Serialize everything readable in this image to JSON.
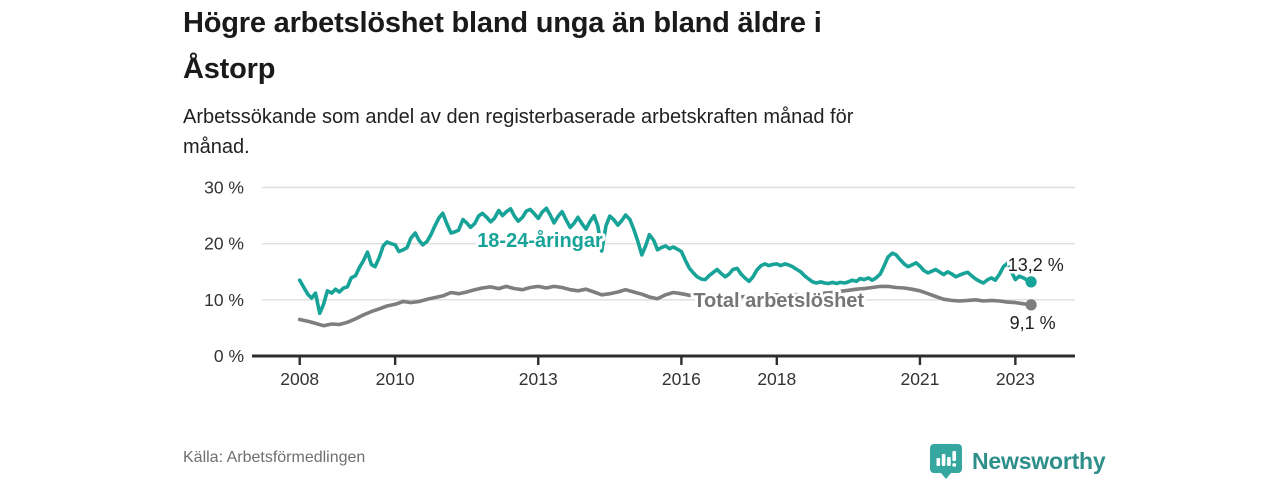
{
  "header": {
    "title": "Högre arbetslöshet bland unga än bland äldre i\nÅstorp",
    "subtitle": "Arbetssökande som andel av den registerbaserade arbetskraften månad för\nmånad."
  },
  "footer": {
    "source": "Källa: Arbetsförmedlingen",
    "brand": "Newsworthy",
    "brand_color": "#2e8f8a",
    "badge_color": "#35a79f"
  },
  "chart_data": {
    "type": "line",
    "title": "Högre arbetslöshet bland unga än bland äldre i Åstorp",
    "subtitle": "Arbetssökande som andel av den registerbaserade arbetskraften månad för månad.",
    "xlabel": "",
    "ylabel": "",
    "xlim": [
      2007.0,
      2024.25
    ],
    "ylim": [
      0,
      30
    ],
    "grid": "horizontal",
    "grid_color": "#dedede",
    "x_ticks": [
      {
        "value": 2008,
        "label": "2008"
      },
      {
        "value": 2010,
        "label": "2010"
      },
      {
        "value": 2013,
        "label": "2013"
      },
      {
        "value": 2016,
        "label": "2016"
      },
      {
        "value": 2018,
        "label": "2018"
      },
      {
        "value": 2021,
        "label": "2021"
      },
      {
        "value": 2023,
        "label": "2023"
      }
    ],
    "y_ticks": [
      {
        "value": 0,
        "label": "0 %"
      },
      {
        "value": 10,
        "label": "10 %"
      },
      {
        "value": 20,
        "label": "20 %"
      },
      {
        "value": 30,
        "label": "30 %"
      }
    ],
    "series": [
      {
        "name": "Total arbetslöshet",
        "color": "#7e7e7e",
        "label_color": "#757575",
        "label_pos": {
          "x": 2016.25,
          "y": 8.7
        },
        "end_label": "9,1 %",
        "end_label_pos": {
          "x": 2022.88,
          "y": 4.8
        },
        "end_value": 9.1,
        "points": [
          [
            2008.0,
            6.5
          ],
          [
            2008.17,
            6.2
          ],
          [
            2008.33,
            5.8
          ],
          [
            2008.5,
            5.4
          ],
          [
            2008.67,
            5.7
          ],
          [
            2008.83,
            5.6
          ],
          [
            2009.0,
            6.0
          ],
          [
            2009.17,
            6.6
          ],
          [
            2009.33,
            7.3
          ],
          [
            2009.5,
            7.9
          ],
          [
            2009.67,
            8.4
          ],
          [
            2009.83,
            8.9
          ],
          [
            2010.0,
            9.2
          ],
          [
            2010.17,
            9.7
          ],
          [
            2010.33,
            9.5
          ],
          [
            2010.5,
            9.7
          ],
          [
            2010.67,
            10.1
          ],
          [
            2010.83,
            10.4
          ],
          [
            2011.0,
            10.7
          ],
          [
            2011.17,
            11.3
          ],
          [
            2011.33,
            11.1
          ],
          [
            2011.5,
            11.4
          ],
          [
            2011.67,
            11.8
          ],
          [
            2011.83,
            12.1
          ],
          [
            2012.0,
            12.3
          ],
          [
            2012.17,
            12.0
          ],
          [
            2012.33,
            12.4
          ],
          [
            2012.5,
            12.0
          ],
          [
            2012.67,
            11.8
          ],
          [
            2012.83,
            12.2
          ],
          [
            2013.0,
            12.4
          ],
          [
            2013.17,
            12.1
          ],
          [
            2013.33,
            12.4
          ],
          [
            2013.5,
            12.2
          ],
          [
            2013.67,
            11.8
          ],
          [
            2013.83,
            11.6
          ],
          [
            2014.0,
            11.9
          ],
          [
            2014.17,
            11.4
          ],
          [
            2014.33,
            10.9
          ],
          [
            2014.5,
            11.1
          ],
          [
            2014.67,
            11.4
          ],
          [
            2014.83,
            11.8
          ],
          [
            2015.0,
            11.4
          ],
          [
            2015.17,
            11.0
          ],
          [
            2015.33,
            10.5
          ],
          [
            2015.5,
            10.2
          ],
          [
            2015.67,
            10.9
          ],
          [
            2015.83,
            11.3
          ],
          [
            2016.0,
            11.1
          ],
          [
            2016.17,
            10.8
          ],
          [
            2016.33,
            10.9
          ],
          [
            2016.5,
            10.6
          ],
          [
            2016.67,
            10.8
          ],
          [
            2016.83,
            10.6
          ],
          [
            2017.0,
            10.7
          ],
          [
            2017.17,
            10.5
          ],
          [
            2017.33,
            10.6
          ],
          [
            2017.5,
            10.8
          ],
          [
            2017.67,
            10.6
          ],
          [
            2017.83,
            10.8
          ],
          [
            2018.0,
            10.9
          ],
          [
            2018.17,
            10.8
          ],
          [
            2018.33,
            11.0
          ],
          [
            2018.5,
            10.8
          ],
          [
            2018.67,
            10.9
          ],
          [
            2018.83,
            11.0
          ],
          [
            2019.0,
            11.2
          ],
          [
            2019.17,
            11.3
          ],
          [
            2019.33,
            11.5
          ],
          [
            2019.5,
            11.7
          ],
          [
            2019.67,
            11.9
          ],
          [
            2019.83,
            12.0
          ],
          [
            2020.0,
            12.2
          ],
          [
            2020.17,
            12.4
          ],
          [
            2020.33,
            12.4
          ],
          [
            2020.5,
            12.2
          ],
          [
            2020.67,
            12.1
          ],
          [
            2020.83,
            11.9
          ],
          [
            2021.0,
            11.6
          ],
          [
            2021.17,
            11.1
          ],
          [
            2021.33,
            10.6
          ],
          [
            2021.5,
            10.1
          ],
          [
            2021.67,
            9.9
          ],
          [
            2021.83,
            9.8
          ],
          [
            2022.0,
            9.9
          ],
          [
            2022.17,
            10.0
          ],
          [
            2022.33,
            9.8
          ],
          [
            2022.5,
            9.9
          ],
          [
            2022.67,
            9.8
          ],
          [
            2022.83,
            9.6
          ],
          [
            2023.0,
            9.5
          ],
          [
            2023.17,
            9.3
          ],
          [
            2023.33,
            9.1
          ]
        ]
      },
      {
        "name": "18-24-åringar",
        "color": "#17a398",
        "label_color": "#17a398",
        "label_pos": {
          "x": 2011.72,
          "y": 19.4
        },
        "end_label": "13,2 %",
        "end_label_pos": {
          "x": 2022.84,
          "y": 15.1
        },
        "end_value": 13.2,
        "points": [
          [
            2008.0,
            13.5
          ],
          [
            2008.08,
            12.3
          ],
          [
            2008.17,
            11.0
          ],
          [
            2008.25,
            10.3
          ],
          [
            2008.33,
            11.2
          ],
          [
            2008.42,
            7.6
          ],
          [
            2008.5,
            9.2
          ],
          [
            2008.58,
            11.6
          ],
          [
            2008.67,
            11.2
          ],
          [
            2008.75,
            11.9
          ],
          [
            2008.83,
            11.4
          ],
          [
            2008.92,
            12.1
          ],
          [
            2009.0,
            12.3
          ],
          [
            2009.08,
            13.9
          ],
          [
            2009.17,
            14.3
          ],
          [
            2009.25,
            15.7
          ],
          [
            2009.33,
            16.9
          ],
          [
            2009.42,
            18.5
          ],
          [
            2009.5,
            16.3
          ],
          [
            2009.58,
            15.9
          ],
          [
            2009.67,
            17.6
          ],
          [
            2009.75,
            19.6
          ],
          [
            2009.83,
            20.3
          ],
          [
            2009.92,
            20.0
          ],
          [
            2010.0,
            19.8
          ],
          [
            2010.08,
            18.6
          ],
          [
            2010.17,
            18.9
          ],
          [
            2010.25,
            19.3
          ],
          [
            2010.33,
            21.0
          ],
          [
            2010.42,
            21.9
          ],
          [
            2010.5,
            20.6
          ],
          [
            2010.58,
            19.8
          ],
          [
            2010.67,
            20.4
          ],
          [
            2010.75,
            21.6
          ],
          [
            2010.83,
            23.1
          ],
          [
            2010.92,
            24.6
          ],
          [
            2011.0,
            25.4
          ],
          [
            2011.08,
            23.6
          ],
          [
            2011.17,
            21.9
          ],
          [
            2011.25,
            22.1
          ],
          [
            2011.33,
            22.4
          ],
          [
            2011.42,
            24.3
          ],
          [
            2011.5,
            23.7
          ],
          [
            2011.58,
            22.9
          ],
          [
            2011.67,
            23.6
          ],
          [
            2011.75,
            24.9
          ],
          [
            2011.83,
            25.4
          ],
          [
            2011.92,
            24.7
          ],
          [
            2012.0,
            23.9
          ],
          [
            2012.08,
            24.5
          ],
          [
            2012.17,
            25.9
          ],
          [
            2012.25,
            25.0
          ],
          [
            2012.33,
            25.7
          ],
          [
            2012.42,
            26.2
          ],
          [
            2012.5,
            24.9
          ],
          [
            2012.58,
            24.0
          ],
          [
            2012.67,
            24.7
          ],
          [
            2012.75,
            25.8
          ],
          [
            2012.83,
            26.1
          ],
          [
            2012.92,
            25.3
          ],
          [
            2013.0,
            24.5
          ],
          [
            2013.08,
            25.6
          ],
          [
            2013.17,
            26.3
          ],
          [
            2013.25,
            25.1
          ],
          [
            2013.33,
            23.7
          ],
          [
            2013.42,
            24.9
          ],
          [
            2013.5,
            25.7
          ],
          [
            2013.58,
            24.3
          ],
          [
            2013.67,
            22.9
          ],
          [
            2013.75,
            23.6
          ],
          [
            2013.83,
            24.7
          ],
          [
            2013.92,
            23.5
          ],
          [
            2014.0,
            22.6
          ],
          [
            2014.08,
            23.9
          ],
          [
            2014.17,
            25.0
          ],
          [
            2014.25,
            23.1
          ],
          [
            2014.33,
            18.7
          ],
          [
            2014.42,
            23.2
          ],
          [
            2014.5,
            24.9
          ],
          [
            2014.58,
            24.3
          ],
          [
            2014.67,
            23.3
          ],
          [
            2014.75,
            24.1
          ],
          [
            2014.83,
            25.1
          ],
          [
            2014.92,
            24.3
          ],
          [
            2015.0,
            22.6
          ],
          [
            2015.08,
            20.6
          ],
          [
            2015.17,
            18.0
          ],
          [
            2015.25,
            19.6
          ],
          [
            2015.33,
            21.6
          ],
          [
            2015.42,
            20.6
          ],
          [
            2015.5,
            18.9
          ],
          [
            2015.58,
            19.3
          ],
          [
            2015.67,
            19.6
          ],
          [
            2015.75,
            19.1
          ],
          [
            2015.83,
            19.4
          ],
          [
            2015.92,
            19.0
          ],
          [
            2016.0,
            18.6
          ],
          [
            2016.08,
            17.1
          ],
          [
            2016.17,
            15.6
          ],
          [
            2016.25,
            14.8
          ],
          [
            2016.33,
            14.1
          ],
          [
            2016.42,
            13.7
          ],
          [
            2016.5,
            13.6
          ],
          [
            2016.58,
            14.3
          ],
          [
            2016.67,
            14.9
          ],
          [
            2016.75,
            15.4
          ],
          [
            2016.83,
            14.7
          ],
          [
            2016.92,
            14.1
          ],
          [
            2017.0,
            14.6
          ],
          [
            2017.08,
            15.4
          ],
          [
            2017.17,
            15.6
          ],
          [
            2017.25,
            14.6
          ],
          [
            2017.33,
            13.9
          ],
          [
            2017.42,
            13.3
          ],
          [
            2017.5,
            14.1
          ],
          [
            2017.58,
            15.3
          ],
          [
            2017.67,
            16.1
          ],
          [
            2017.75,
            16.4
          ],
          [
            2017.83,
            16.1
          ],
          [
            2017.92,
            16.3
          ],
          [
            2018.0,
            16.4
          ],
          [
            2018.08,
            16.1
          ],
          [
            2018.17,
            16.4
          ],
          [
            2018.25,
            16.2
          ],
          [
            2018.33,
            15.9
          ],
          [
            2018.42,
            15.4
          ],
          [
            2018.5,
            15.0
          ],
          [
            2018.58,
            14.3
          ],
          [
            2018.67,
            13.7
          ],
          [
            2018.75,
            13.2
          ],
          [
            2018.83,
            13.0
          ],
          [
            2018.92,
            13.2
          ],
          [
            2019.0,
            13.0
          ],
          [
            2019.08,
            12.9
          ],
          [
            2019.17,
            13.1
          ],
          [
            2019.25,
            12.9
          ],
          [
            2019.33,
            13.1
          ],
          [
            2019.42,
            13.0
          ],
          [
            2019.5,
            13.2
          ],
          [
            2019.58,
            13.5
          ],
          [
            2019.67,
            13.3
          ],
          [
            2019.75,
            13.8
          ],
          [
            2019.83,
            13.6
          ],
          [
            2019.92,
            13.9
          ],
          [
            2020.0,
            13.5
          ],
          [
            2020.08,
            13.9
          ],
          [
            2020.17,
            14.6
          ],
          [
            2020.25,
            16.1
          ],
          [
            2020.33,
            17.6
          ],
          [
            2020.42,
            18.3
          ],
          [
            2020.5,
            18.0
          ],
          [
            2020.58,
            17.2
          ],
          [
            2020.67,
            16.4
          ],
          [
            2020.75,
            15.9
          ],
          [
            2020.83,
            16.2
          ],
          [
            2020.92,
            16.6
          ],
          [
            2021.0,
            16.0
          ],
          [
            2021.08,
            15.2
          ],
          [
            2021.17,
            14.8
          ],
          [
            2021.25,
            15.1
          ],
          [
            2021.33,
            15.4
          ],
          [
            2021.42,
            14.9
          ],
          [
            2021.5,
            14.5
          ],
          [
            2021.58,
            15.0
          ],
          [
            2021.67,
            14.6
          ],
          [
            2021.75,
            14.1
          ],
          [
            2021.83,
            14.4
          ],
          [
            2021.92,
            14.7
          ],
          [
            2022.0,
            14.9
          ],
          [
            2022.08,
            14.3
          ],
          [
            2022.17,
            13.7
          ],
          [
            2022.25,
            13.3
          ],
          [
            2022.33,
            13.0
          ],
          [
            2022.42,
            13.6
          ],
          [
            2022.5,
            13.9
          ],
          [
            2022.58,
            13.5
          ],
          [
            2022.67,
            14.6
          ],
          [
            2022.75,
            15.9
          ],
          [
            2022.83,
            16.5
          ],
          [
            2022.92,
            15.0
          ],
          [
            2023.0,
            13.6
          ],
          [
            2023.08,
            14.2
          ],
          [
            2023.17,
            13.9
          ],
          [
            2023.25,
            13.5
          ],
          [
            2023.33,
            13.2
          ]
        ]
      }
    ],
    "legend_position": "inline-labels"
  }
}
